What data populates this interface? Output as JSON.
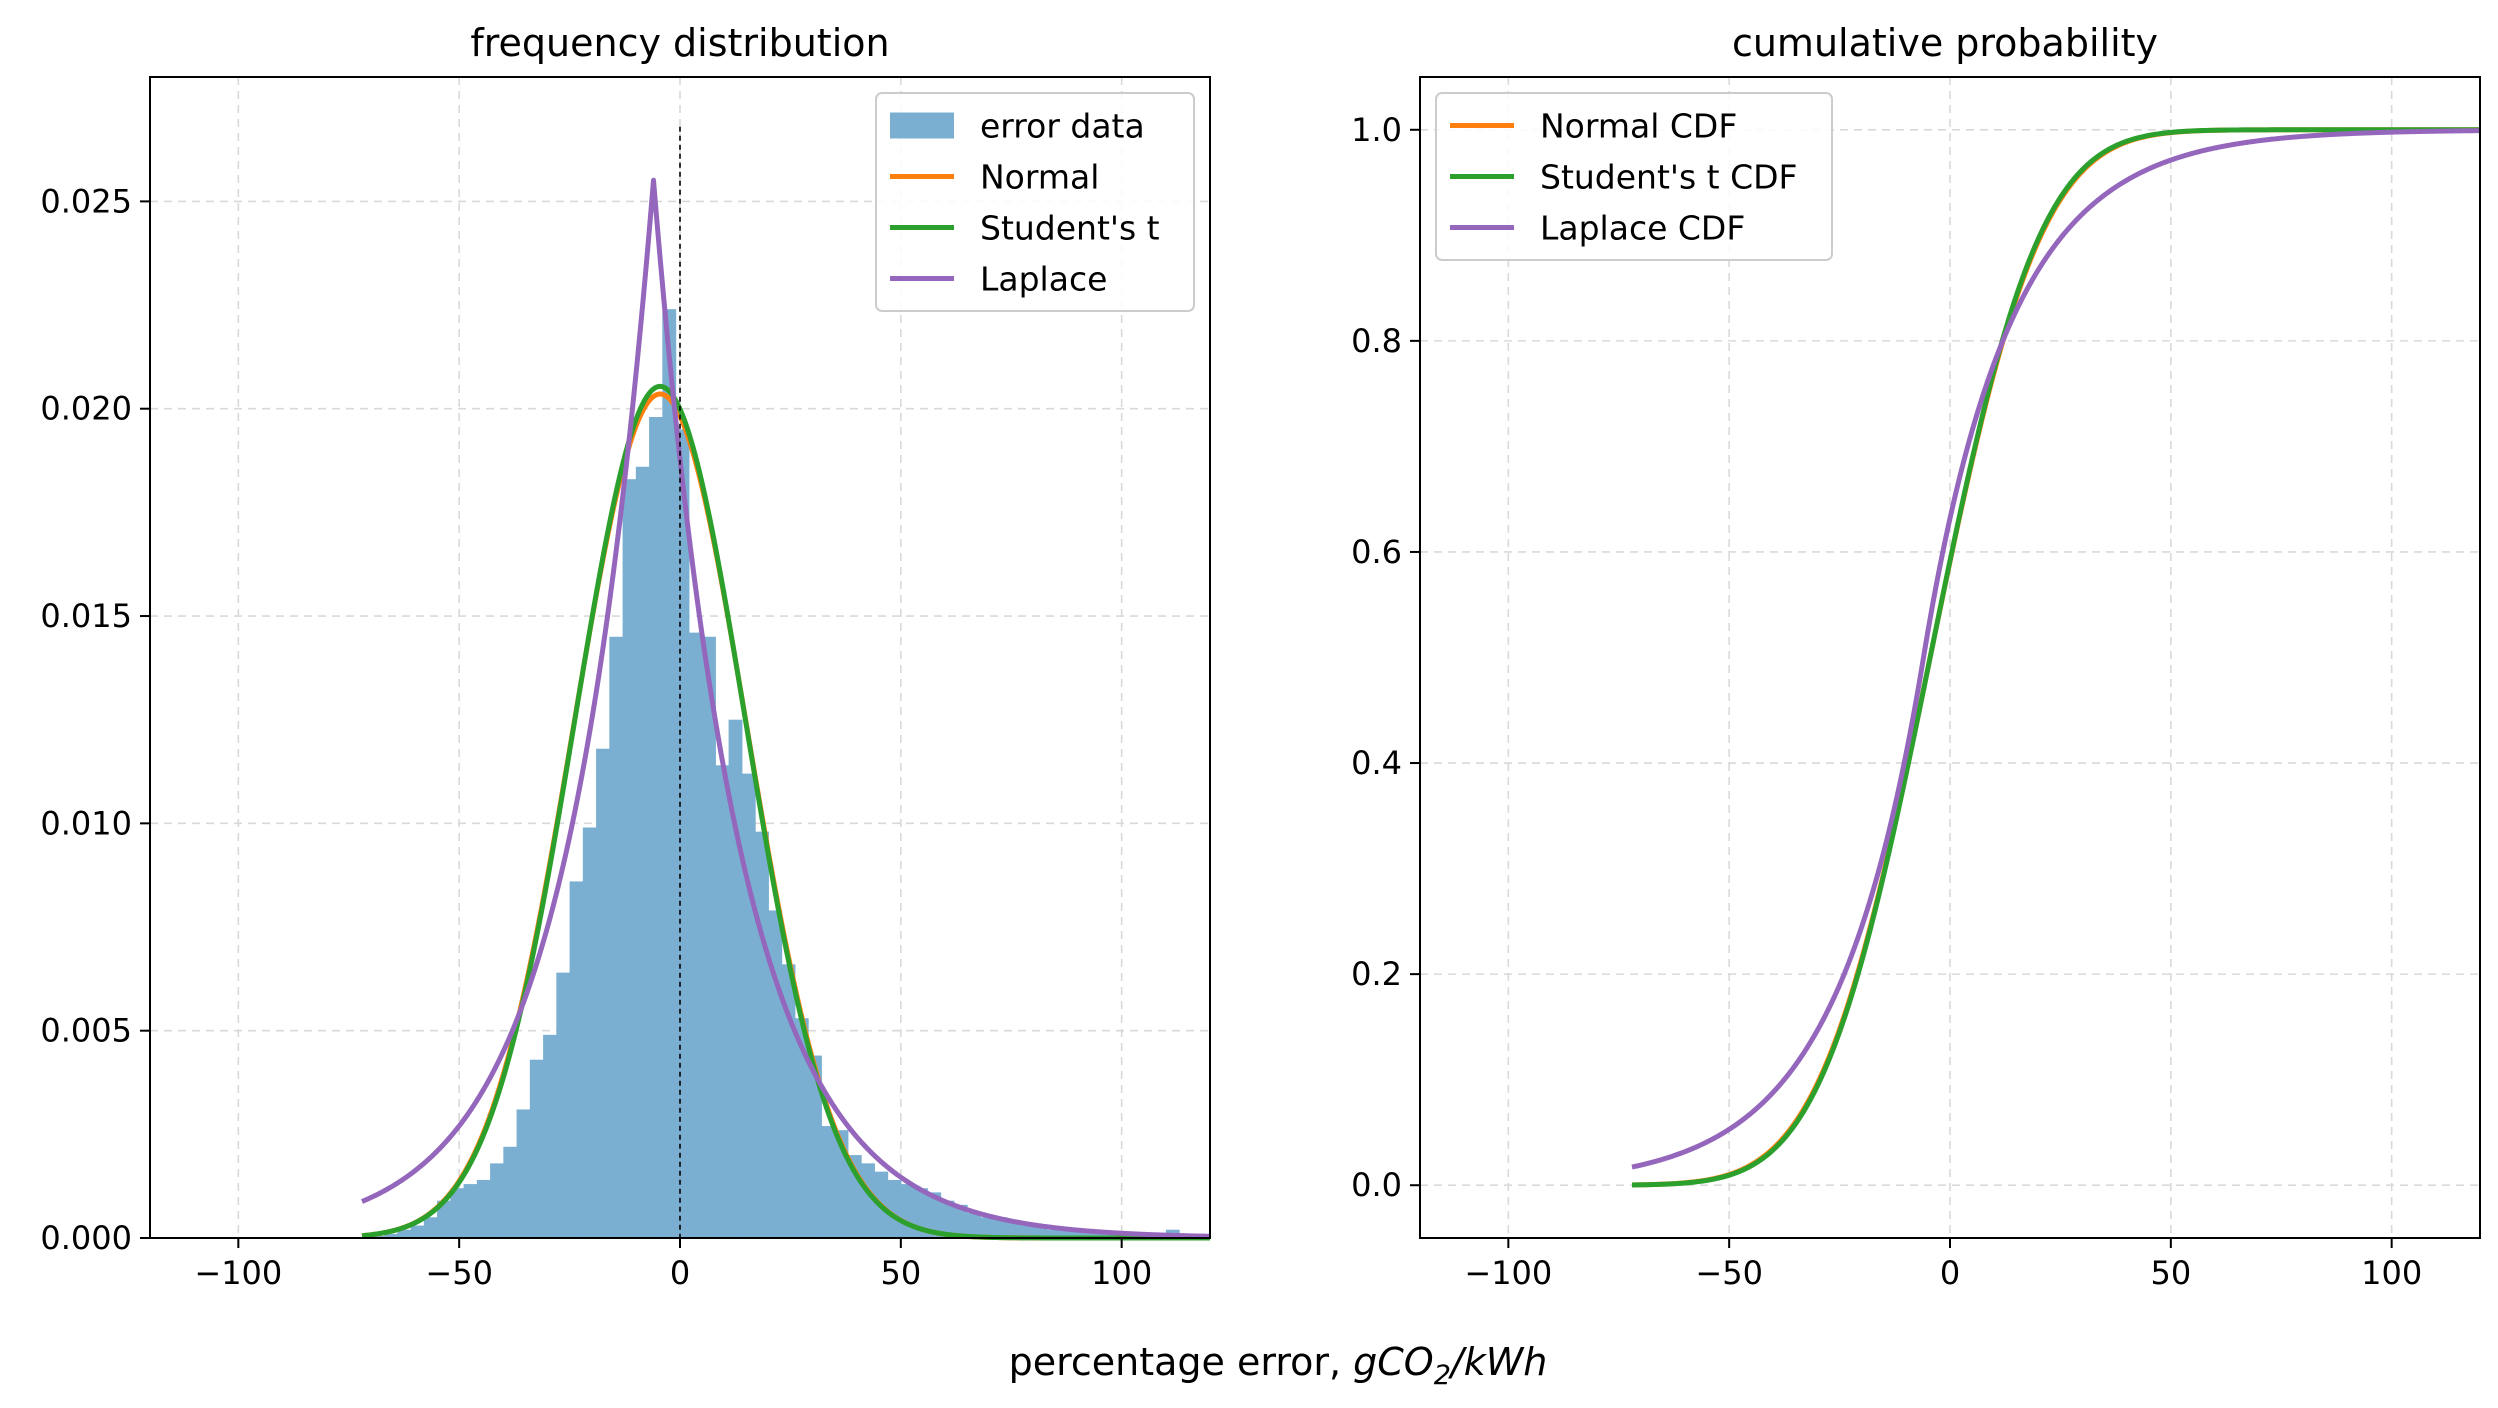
{
  "figure": {
    "xlabel_prefix": "percentage error, ",
    "xlabel_g": "gCO",
    "xlabel_sub": "2",
    "xlabel_suffix": "/kWh"
  },
  "chart_data": [
    {
      "type": "histogram",
      "title": "frequency distribution",
      "xlim": [
        -120,
        120
      ],
      "ylim": [
        0,
        0.028
      ],
      "xticks": [
        -100,
        -50,
        0,
        50,
        100
      ],
      "xtick_labels": [
        "−100",
        "−50",
        "0",
        "50",
        "100"
      ],
      "yticks": [
        0,
        0.005,
        0.01,
        0.015,
        0.02,
        0.025
      ],
      "ytick_labels": [
        "0.000",
        "0.005",
        "0.010",
        "0.015",
        "0.020",
        "0.025"
      ],
      "grid": true,
      "legend_position": "top-right",
      "vline_x": 0,
      "bin_edges": [
        -70,
        -67,
        -64,
        -61,
        -58,
        -55,
        -52,
        -49,
        -46,
        -43,
        -40,
        -37,
        -34,
        -31,
        -28,
        -25,
        -22,
        -19,
        -16,
        -13,
        -10,
        -7,
        -4,
        -1,
        2,
        5,
        8,
        11,
        14,
        17,
        20,
        23,
        26,
        29,
        32,
        35,
        38,
        41,
        44,
        47,
        50,
        53,
        56,
        59,
        62,
        65,
        68,
        71,
        74,
        77,
        80,
        83,
        86,
        89,
        92,
        95,
        98,
        101,
        104,
        107,
        110,
        113,
        116,
        119
      ],
      "bar_values": [
        5e-05,
        0.0001,
        0.0002,
        0.0003,
        0.0005,
        0.0009,
        0.0012,
        0.0013,
        0.0014,
        0.0018,
        0.0022,
        0.0031,
        0.0043,
        0.0049,
        0.0064,
        0.0086,
        0.0099,
        0.0118,
        0.0145,
        0.0183,
        0.0186,
        0.0198,
        0.0224,
        0.0195,
        0.0146,
        0.0145,
        0.0114,
        0.0125,
        0.0112,
        0.0098,
        0.0079,
        0.0066,
        0.0053,
        0.0044,
        0.0027,
        0.0026,
        0.002,
        0.0018,
        0.0016,
        0.0014,
        0.0013,
        0.0012,
        0.0011,
        0.0009,
        0.0008,
        0.0006,
        0.0005,
        0.0005,
        0.0004,
        0.0003,
        0.0003,
        0.0002,
        0.0002,
        0.0002,
        0.0002,
        0.0001,
        0.0001,
        0.0001,
        0.0001,
        0.0001,
        0.0002,
        0.0001,
        0.0001
      ],
      "series": [
        {
          "name": "error data",
          "kind": "bars",
          "color": "#7aafd2"
        },
        {
          "name": "Normal",
          "kind": "normal_pdf",
          "mu": -4.5,
          "sigma": 19.6,
          "x_range": [
            -72,
            120
          ],
          "color": "#ff7f0e"
        },
        {
          "name": "Student's t",
          "kind": "t_pdf",
          "mu": -4.5,
          "sigma": 19.4,
          "df": 200,
          "x_range": [
            -72,
            120
          ],
          "color": "#2ca02c"
        },
        {
          "name": "Laplace",
          "kind": "laplace_pdf",
          "mu": -6,
          "b": 19.6,
          "x_range": [
            -72,
            120
          ],
          "color": "#9467bd"
        }
      ]
    },
    {
      "type": "line",
      "title": "cumulative probability",
      "xlim": [
        -120,
        120
      ],
      "ylim": [
        -0.05,
        1.05
      ],
      "xticks": [
        -100,
        -50,
        0,
        50,
        100
      ],
      "xtick_labels": [
        "−100",
        "−50",
        "0",
        "50",
        "100"
      ],
      "yticks": [
        0,
        0.2,
        0.4,
        0.6,
        0.8,
        1.0
      ],
      "ytick_labels": [
        "0.0",
        "0.2",
        "0.4",
        "0.6",
        "0.8",
        "1.0"
      ],
      "grid": true,
      "legend_position": "top-left",
      "series": [
        {
          "name": "Normal CDF",
          "kind": "normal_cdf",
          "mu": -4.5,
          "sigma": 19.6,
          "x_range": [
            -72,
            120
          ],
          "color": "#ff7f0e"
        },
        {
          "name": "Student's t CDF",
          "kind": "t_cdf",
          "mu": -4.5,
          "sigma": 19.4,
          "df": 200,
          "x_range": [
            -72,
            120
          ],
          "color": "#2ca02c"
        },
        {
          "name": "Laplace CDF",
          "kind": "laplace_cdf",
          "mu": -6,
          "b": 19.6,
          "x_range": [
            -72,
            120
          ],
          "color": "#9467bd"
        }
      ]
    }
  ]
}
